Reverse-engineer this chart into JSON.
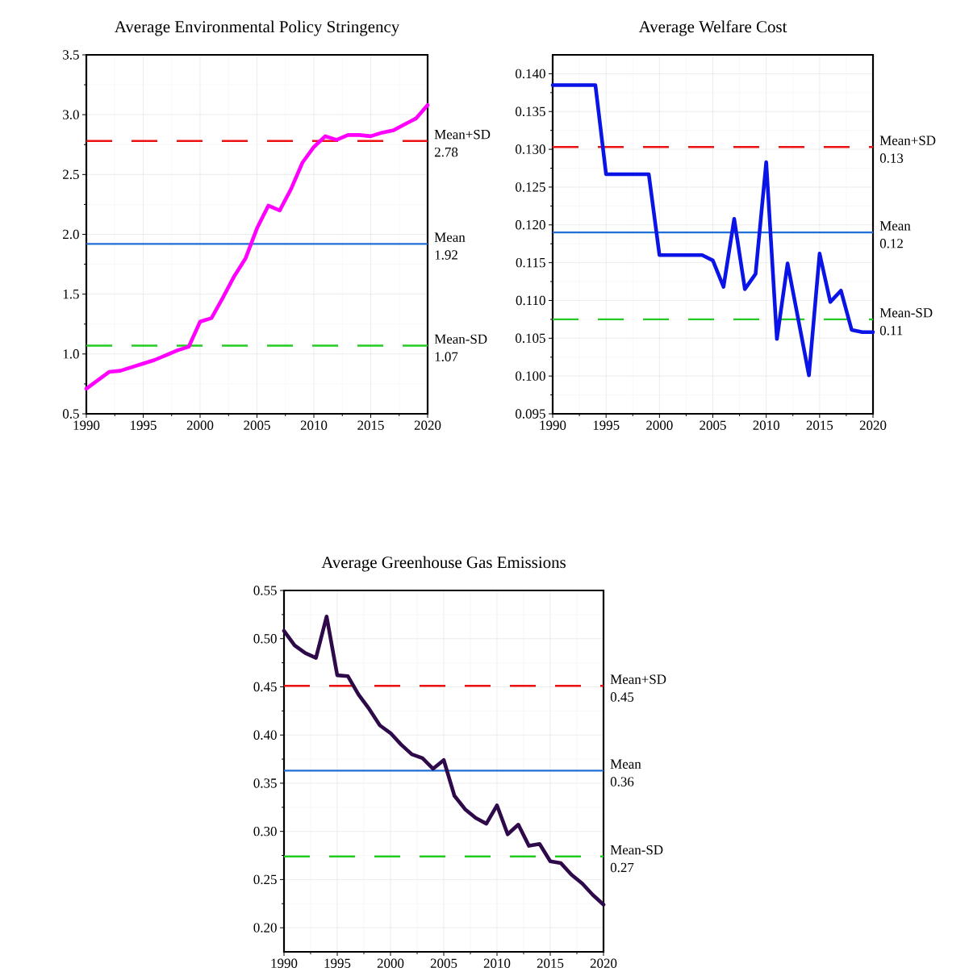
{
  "chart_data": [
    {
      "type": "line",
      "title": "Average Environmental Policy Stringency",
      "x": [
        1990,
        1991,
        1992,
        1993,
        1994,
        1995,
        1996,
        1997,
        1998,
        1999,
        2000,
        2001,
        2002,
        2003,
        2004,
        2005,
        2006,
        2007,
        2008,
        2009,
        2010,
        2011,
        2012,
        2013,
        2014,
        2015,
        2016,
        2017,
        2018,
        2019,
        2020
      ],
      "series": [
        {
          "color": "#ff00ff",
          "values": [
            0.71,
            0.78,
            0.85,
            0.86,
            0.89,
            0.92,
            0.95,
            0.99,
            1.03,
            1.06,
            1.27,
            1.3,
            1.47,
            1.65,
            1.8,
            2.05,
            2.24,
            2.2,
            2.38,
            2.6,
            2.73,
            2.82,
            2.79,
            2.83,
            2.83,
            2.82,
            2.85,
            2.87,
            2.92,
            2.97,
            3.08
          ]
        }
      ],
      "xlim": [
        1990,
        2020
      ],
      "xticks": [
        1990,
        1995,
        2000,
        2005,
        2010,
        2015,
        2020
      ],
      "ylim": [
        0.5,
        3.5
      ],
      "yticks": [
        0.5,
        {
          "value": 1.0,
          "label": "1.0"
        },
        1.5,
        {
          "value": 2.0,
          "label": "2.0"
        },
        2.5,
        {
          "value": 3.0,
          "label": "3.0"
        },
        3.5
      ],
      "ref_lines": [
        {
          "axis": "y",
          "value": 2.78,
          "label": "Mean+SD 2.78",
          "color": "#ee1111",
          "line_style": "dashed"
        },
        {
          "axis": "y",
          "value": 1.92,
          "label": "Mean 1.92",
          "color": "#1f6fd6",
          "line_style": "solid"
        },
        {
          "axis": "y",
          "value": 1.07,
          "label": "Mean-SD 1.07",
          "color": "#22cc22",
          "line_style": "dashed"
        }
      ],
      "grid": true,
      "legend": false,
      "marker": "none",
      "line_style": "solid"
    },
    {
      "type": "line",
      "title": "Average Welfare Cost",
      "x": [
        1990,
        1991,
        1992,
        1993,
        1994,
        1995,
        1996,
        1997,
        1998,
        1999,
        2000,
        2001,
        2002,
        2003,
        2004,
        2005,
        2006,
        2007,
        2008,
        2009,
        2010,
        2011,
        2012,
        2013,
        2014,
        2015,
        2016,
        2017,
        2018,
        2019,
        2020
      ],
      "series": [
        {
          "color": "#0a14e6",
          "values": [
            0.1385,
            0.1385,
            0.1385,
            0.1385,
            0.1385,
            0.1267,
            0.1267,
            0.1267,
            0.1267,
            0.1267,
            0.116,
            0.116,
            0.116,
            0.116,
            0.116,
            0.1153,
            0.1118,
            0.1208,
            0.1115,
            0.1135,
            0.1283,
            0.1049,
            0.1149,
            0.1075,
            0.1001,
            0.1162,
            0.1098,
            0.1113,
            0.1061,
            0.1058,
            0.1058
          ]
        }
      ],
      "xlim": [
        1990,
        2020
      ],
      "xticks": [
        1990,
        1995,
        2000,
        2005,
        2010,
        2015,
        2020
      ],
      "ylim": [
        0.095,
        0.1425
      ],
      "yticks": [
        {
          "value": 0.095,
          "label": "0.095"
        },
        {
          "value": 0.1,
          "label": "0.100"
        },
        {
          "value": 0.105,
          "label": "0.105"
        },
        {
          "value": 0.11,
          "label": "0.110"
        },
        {
          "value": 0.115,
          "label": "0.115"
        },
        {
          "value": 0.12,
          "label": "0.120"
        },
        {
          "value": 0.125,
          "label": "0.125"
        },
        {
          "value": 0.13,
          "label": "0.130"
        },
        {
          "value": 0.135,
          "label": "0.135"
        },
        {
          "value": 0.14,
          "label": "0.140"
        }
      ],
      "ref_lines": [
        {
          "axis": "y",
          "value": 0.1303,
          "label": "Mean+SD 0.13",
          "color": "#ee1111",
          "line_style": "dashed"
        },
        {
          "axis": "y",
          "value": 0.119,
          "label": "Mean 0.12",
          "color": "#1f6fd6",
          "line_style": "solid"
        },
        {
          "axis": "y",
          "value": 0.1075,
          "label": "Mean-SD 0.11",
          "color": "#22cc22",
          "line_style": "dashed"
        }
      ],
      "grid": true,
      "legend": false,
      "marker": "none",
      "line_style": "solid"
    },
    {
      "type": "line",
      "title": "Average Greenhouse Gas Emissions",
      "x": [
        1990,
        1991,
        1992,
        1993,
        1994,
        1995,
        1996,
        1997,
        1998,
        1999,
        2000,
        2001,
        2002,
        2003,
        2004,
        2005,
        2006,
        2007,
        2008,
        2009,
        2010,
        2011,
        2012,
        2013,
        2014,
        2015,
        2016,
        2017,
        2018,
        2019,
        2020
      ],
      "series": [
        {
          "color": "#2e0a4a",
          "values": [
            0.508,
            0.493,
            0.485,
            0.48,
            0.523,
            0.462,
            0.461,
            0.442,
            0.427,
            0.41,
            0.402,
            0.39,
            0.38,
            0.376,
            0.365,
            0.374,
            0.337,
            0.323,
            0.314,
            0.308,
            0.327,
            0.297,
            0.307,
            0.285,
            0.287,
            0.269,
            0.267,
            0.255,
            0.246,
            0.234,
            0.224
          ]
        }
      ],
      "xlim": [
        1990,
        2020
      ],
      "xticks": [
        1990,
        1995,
        2000,
        2005,
        2010,
        2015,
        2020
      ],
      "ylim": [
        0.175,
        0.55
      ],
      "yticks": [
        {
          "value": 0.2,
          "label": "0.20"
        },
        {
          "value": 0.25,
          "label": "0.25"
        },
        {
          "value": 0.3,
          "label": "0.30"
        },
        {
          "value": 0.35,
          "label": "0.35"
        },
        {
          "value": 0.4,
          "label": "0.40"
        },
        {
          "value": 0.45,
          "label": "0.45"
        },
        {
          "value": 0.5,
          "label": "0.50"
        },
        {
          "value": 0.55,
          "label": "0.55"
        }
      ],
      "ref_lines": [
        {
          "axis": "y",
          "value": 0.451,
          "label": "Mean+SD 0.45",
          "color": "#ee1111",
          "line_style": "dashed"
        },
        {
          "axis": "y",
          "value": 0.363,
          "label": "Mean 0.36",
          "color": "#1f6fd6",
          "line_style": "solid"
        },
        {
          "axis": "y",
          "value": 0.274,
          "label": "Mean-SD 0.27",
          "color": "#22cc22",
          "line_style": "dashed"
        }
      ],
      "grid": true,
      "legend": false,
      "marker": "none",
      "line_style": "solid"
    }
  ]
}
